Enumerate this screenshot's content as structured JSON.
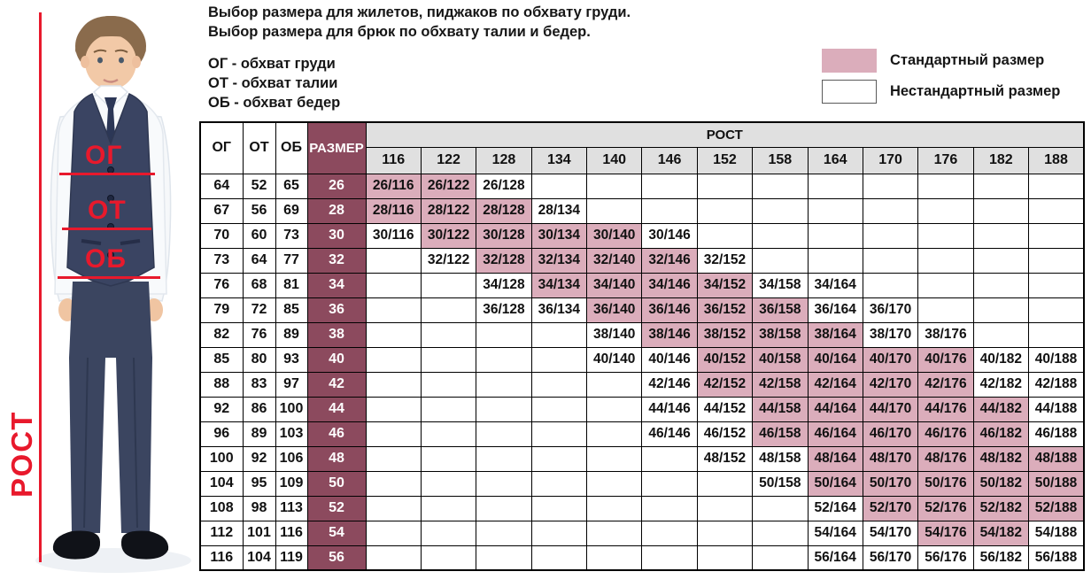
{
  "page": {
    "title_lines": [
      "Выбор размера для жилетов, пиджаков по обхвату груди.",
      "Выбор размера для брюк по обхвату талии и бедер."
    ],
    "abbreviations": [
      "ОГ - обхват груди",
      "ОТ - обхват талии",
      "ОБ - обхват бедер"
    ]
  },
  "legend": {
    "standard_label": "Стандартный размер",
    "nonstandard_label": "Нестандартный размер",
    "standard_color": "#dbadbb",
    "nonstandard_color": "#ffffff"
  },
  "photo": {
    "chest_label": "ОГ",
    "waist_label": "ОТ",
    "hips_label": "ОБ",
    "height_label": "РОСТ",
    "accent_color": "#e8192c"
  },
  "colors": {
    "size_column": "#8c4a5e",
    "standard_cell": "#dbadbb",
    "header_gray": "#e0e0e0",
    "border": "#000000"
  },
  "chart_data": {
    "type": "table",
    "corner_columns": [
      "ОГ",
      "ОТ",
      "ОБ",
      "РАЗМЕР"
    ],
    "group_header": "РОСТ",
    "height_columns": [
      "116",
      "122",
      "128",
      "134",
      "140",
      "146",
      "152",
      "158",
      "164",
      "170",
      "176",
      "182",
      "188"
    ],
    "rows": [
      {
        "og": "64",
        "ot": "52",
        "ob": "65",
        "size": "26",
        "cells": [
          {
            "label": "26/116",
            "standard": true
          },
          {
            "label": "26/122",
            "standard": true
          },
          {
            "label": "26/128",
            "standard": false
          },
          null,
          null,
          null,
          null,
          null,
          null,
          null,
          null,
          null,
          null
        ]
      },
      {
        "og": "67",
        "ot": "56",
        "ob": "69",
        "size": "28",
        "cells": [
          {
            "label": "28/116",
            "standard": true
          },
          {
            "label": "28/122",
            "standard": true
          },
          {
            "label": "28/128",
            "standard": true
          },
          {
            "label": "28/134",
            "standard": false
          },
          null,
          null,
          null,
          null,
          null,
          null,
          null,
          null,
          null
        ]
      },
      {
        "og": "70",
        "ot": "60",
        "ob": "73",
        "size": "30",
        "cells": [
          {
            "label": "30/116",
            "standard": false
          },
          {
            "label": "30/122",
            "standard": true
          },
          {
            "label": "30/128",
            "standard": true
          },
          {
            "label": "30/134",
            "standard": true
          },
          {
            "label": "30/140",
            "standard": true
          },
          {
            "label": "30/146",
            "standard": false
          },
          null,
          null,
          null,
          null,
          null,
          null,
          null
        ]
      },
      {
        "og": "73",
        "ot": "64",
        "ob": "77",
        "size": "32",
        "cells": [
          null,
          {
            "label": "32/122",
            "standard": false
          },
          {
            "label": "32/128",
            "standard": true
          },
          {
            "label": "32/134",
            "standard": true
          },
          {
            "label": "32/140",
            "standard": true
          },
          {
            "label": "32/146",
            "standard": true
          },
          {
            "label": "32/152",
            "standard": false
          },
          null,
          null,
          null,
          null,
          null,
          null
        ]
      },
      {
        "og": "76",
        "ot": "68",
        "ob": "81",
        "size": "34",
        "cells": [
          null,
          null,
          {
            "label": "34/128",
            "standard": false
          },
          {
            "label": "34/134",
            "standard": true
          },
          {
            "label": "34/140",
            "standard": true
          },
          {
            "label": "34/146",
            "standard": true
          },
          {
            "label": "34/152",
            "standard": true
          },
          {
            "label": "34/158",
            "standard": false
          },
          {
            "label": "34/164",
            "standard": false
          },
          null,
          null,
          null,
          null
        ]
      },
      {
        "og": "79",
        "ot": "72",
        "ob": "85",
        "size": "36",
        "cells": [
          null,
          null,
          {
            "label": "36/128",
            "standard": false
          },
          {
            "label": "36/134",
            "standard": false
          },
          {
            "label": "36/140",
            "standard": true
          },
          {
            "label": "36/146",
            "standard": true
          },
          {
            "label": "36/152",
            "standard": true
          },
          {
            "label": "36/158",
            "standard": true
          },
          {
            "label": "36/164",
            "standard": false
          },
          {
            "label": "36/170",
            "standard": false
          },
          null,
          null,
          null
        ]
      },
      {
        "og": "82",
        "ot": "76",
        "ob": "89",
        "size": "38",
        "cells": [
          null,
          null,
          null,
          null,
          {
            "label": "38/140",
            "standard": false
          },
          {
            "label": "38/146",
            "standard": true
          },
          {
            "label": "38/152",
            "standard": true
          },
          {
            "label": "38/158",
            "standard": true
          },
          {
            "label": "38/164",
            "standard": true
          },
          {
            "label": "38/170",
            "standard": false
          },
          {
            "label": "38/176",
            "standard": false
          },
          null,
          null
        ]
      },
      {
        "og": "85",
        "ot": "80",
        "ob": "93",
        "size": "40",
        "cells": [
          null,
          null,
          null,
          null,
          {
            "label": "40/140",
            "standard": false
          },
          {
            "label": "40/146",
            "standard": false
          },
          {
            "label": "40/152",
            "standard": true
          },
          {
            "label": "40/158",
            "standard": true
          },
          {
            "label": "40/164",
            "standard": true
          },
          {
            "label": "40/170",
            "standard": true
          },
          {
            "label": "40/176",
            "standard": true
          },
          {
            "label": "40/182",
            "standard": false
          },
          {
            "label": "40/188",
            "standard": false
          }
        ]
      },
      {
        "og": "88",
        "ot": "83",
        "ob": "97",
        "size": "42",
        "cells": [
          null,
          null,
          null,
          null,
          null,
          {
            "label": "42/146",
            "standard": false
          },
          {
            "label": "42/152",
            "standard": true
          },
          {
            "label": "42/158",
            "standard": true
          },
          {
            "label": "42/164",
            "standard": true
          },
          {
            "label": "42/170",
            "standard": true
          },
          {
            "label": "42/176",
            "standard": true
          },
          {
            "label": "42/182",
            "standard": false
          },
          {
            "label": "42/188",
            "standard": false
          }
        ]
      },
      {
        "og": "92",
        "ot": "86",
        "ob": "100",
        "size": "44",
        "cells": [
          null,
          null,
          null,
          null,
          null,
          {
            "label": "44/146",
            "standard": false
          },
          {
            "label": "44/152",
            "standard": false
          },
          {
            "label": "44/158",
            "standard": true
          },
          {
            "label": "44/164",
            "standard": true
          },
          {
            "label": "44/170",
            "standard": true
          },
          {
            "label": "44/176",
            "standard": true
          },
          {
            "label": "44/182",
            "standard": true
          },
          {
            "label": "44/188",
            "standard": false
          }
        ]
      },
      {
        "og": "96",
        "ot": "89",
        "ob": "103",
        "size": "46",
        "cells": [
          null,
          null,
          null,
          null,
          null,
          {
            "label": "46/146",
            "standard": false
          },
          {
            "label": "46/152",
            "standard": false
          },
          {
            "label": "46/158",
            "standard": true
          },
          {
            "label": "46/164",
            "standard": true
          },
          {
            "label": "46/170",
            "standard": true
          },
          {
            "label": "46/176",
            "standard": true
          },
          {
            "label": "46/182",
            "standard": true
          },
          {
            "label": "46/188",
            "standard": false
          }
        ]
      },
      {
        "og": "100",
        "ot": "92",
        "ob": "106",
        "size": "48",
        "cells": [
          null,
          null,
          null,
          null,
          null,
          null,
          {
            "label": "48/152",
            "standard": false
          },
          {
            "label": "48/158",
            "standard": false
          },
          {
            "label": "48/164",
            "standard": true
          },
          {
            "label": "48/170",
            "standard": true
          },
          {
            "label": "48/176",
            "standard": true
          },
          {
            "label": "48/182",
            "standard": true
          },
          {
            "label": "48/188",
            "standard": true
          }
        ]
      },
      {
        "og": "104",
        "ot": "95",
        "ob": "109",
        "size": "50",
        "cells": [
          null,
          null,
          null,
          null,
          null,
          null,
          null,
          {
            "label": "50/158",
            "standard": false
          },
          {
            "label": "50/164",
            "standard": true
          },
          {
            "label": "50/170",
            "standard": true
          },
          {
            "label": "50/176",
            "standard": true
          },
          {
            "label": "50/182",
            "standard": true
          },
          {
            "label": "50/188",
            "standard": true
          }
        ]
      },
      {
        "og": "108",
        "ot": "98",
        "ob": "113",
        "size": "52",
        "cells": [
          null,
          null,
          null,
          null,
          null,
          null,
          null,
          null,
          {
            "label": "52/164",
            "standard": false
          },
          {
            "label": "52/170",
            "standard": true
          },
          {
            "label": "52/176",
            "standard": true
          },
          {
            "label": "52/182",
            "standard": true
          },
          {
            "label": "52/188",
            "standard": true
          }
        ]
      },
      {
        "og": "112",
        "ot": "101",
        "ob": "116",
        "size": "54",
        "cells": [
          null,
          null,
          null,
          null,
          null,
          null,
          null,
          null,
          {
            "label": "54/164",
            "standard": false
          },
          {
            "label": "54/170",
            "standard": false
          },
          {
            "label": "54/176",
            "standard": true
          },
          {
            "label": "54/182",
            "standard": true
          },
          {
            "label": "54/188",
            "standard": false
          }
        ]
      },
      {
        "og": "116",
        "ot": "104",
        "ob": "119",
        "size": "56",
        "cells": [
          null,
          null,
          null,
          null,
          null,
          null,
          null,
          null,
          {
            "label": "56/164",
            "standard": false
          },
          {
            "label": "56/170",
            "standard": false
          },
          {
            "label": "56/176",
            "standard": false
          },
          {
            "label": "56/182",
            "standard": false
          },
          {
            "label": "56/188",
            "standard": false
          }
        ]
      }
    ]
  }
}
